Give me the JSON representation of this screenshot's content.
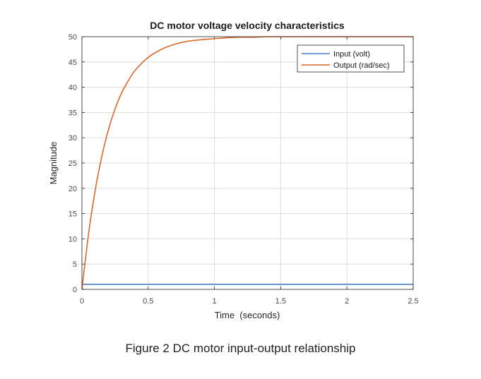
{
  "chart_data": {
    "type": "line",
    "title": "DC motor voltage velocity characteristics",
    "xlabel": "Time  (seconds)",
    "ylabel": "Magnitude",
    "xlim": [
      0,
      2.5
    ],
    "ylim": [
      0,
      50
    ],
    "xticks": [
      0,
      0.5,
      1,
      1.5,
      2,
      2.5
    ],
    "xtick_labels": [
      "0",
      "0.5",
      "1",
      "1.5",
      "2",
      "2.5"
    ],
    "yticks": [
      0,
      5,
      10,
      15,
      20,
      25,
      30,
      35,
      40,
      45,
      50
    ],
    "ytick_labels": [
      "0",
      "5",
      "10",
      "15",
      "20",
      "25",
      "30",
      "35",
      "40",
      "45",
      "50"
    ],
    "grid": true,
    "legend_position": "top-right",
    "series": [
      {
        "name": "Input (volt)",
        "color": "#4a7fbf",
        "x": [
          0,
          2.5
        ],
        "y": [
          1,
          1
        ]
      },
      {
        "name": "Output (rad/sec)",
        "color": "#d9692c",
        "x": [
          0,
          0.05,
          0.1,
          0.15,
          0.2,
          0.25,
          0.3,
          0.35,
          0.4,
          0.5,
          0.6,
          0.7,
          0.8,
          0.9,
          1.0,
          1.1,
          1.2,
          1.3,
          1.4,
          1.5,
          1.75,
          2.0,
          2.25,
          2.5
        ],
        "y": [
          0,
          11.0,
          19.6,
          26.3,
          31.6,
          35.7,
          38.9,
          41.3,
          43.3,
          45.9,
          47.5,
          48.5,
          49.1,
          49.4,
          49.6,
          49.8,
          49.9,
          49.9,
          50.0,
          50.0,
          50.0,
          50.0,
          50.0,
          50.0
        ]
      }
    ]
  },
  "caption": "Figure 2 DC motor input-output relationship"
}
